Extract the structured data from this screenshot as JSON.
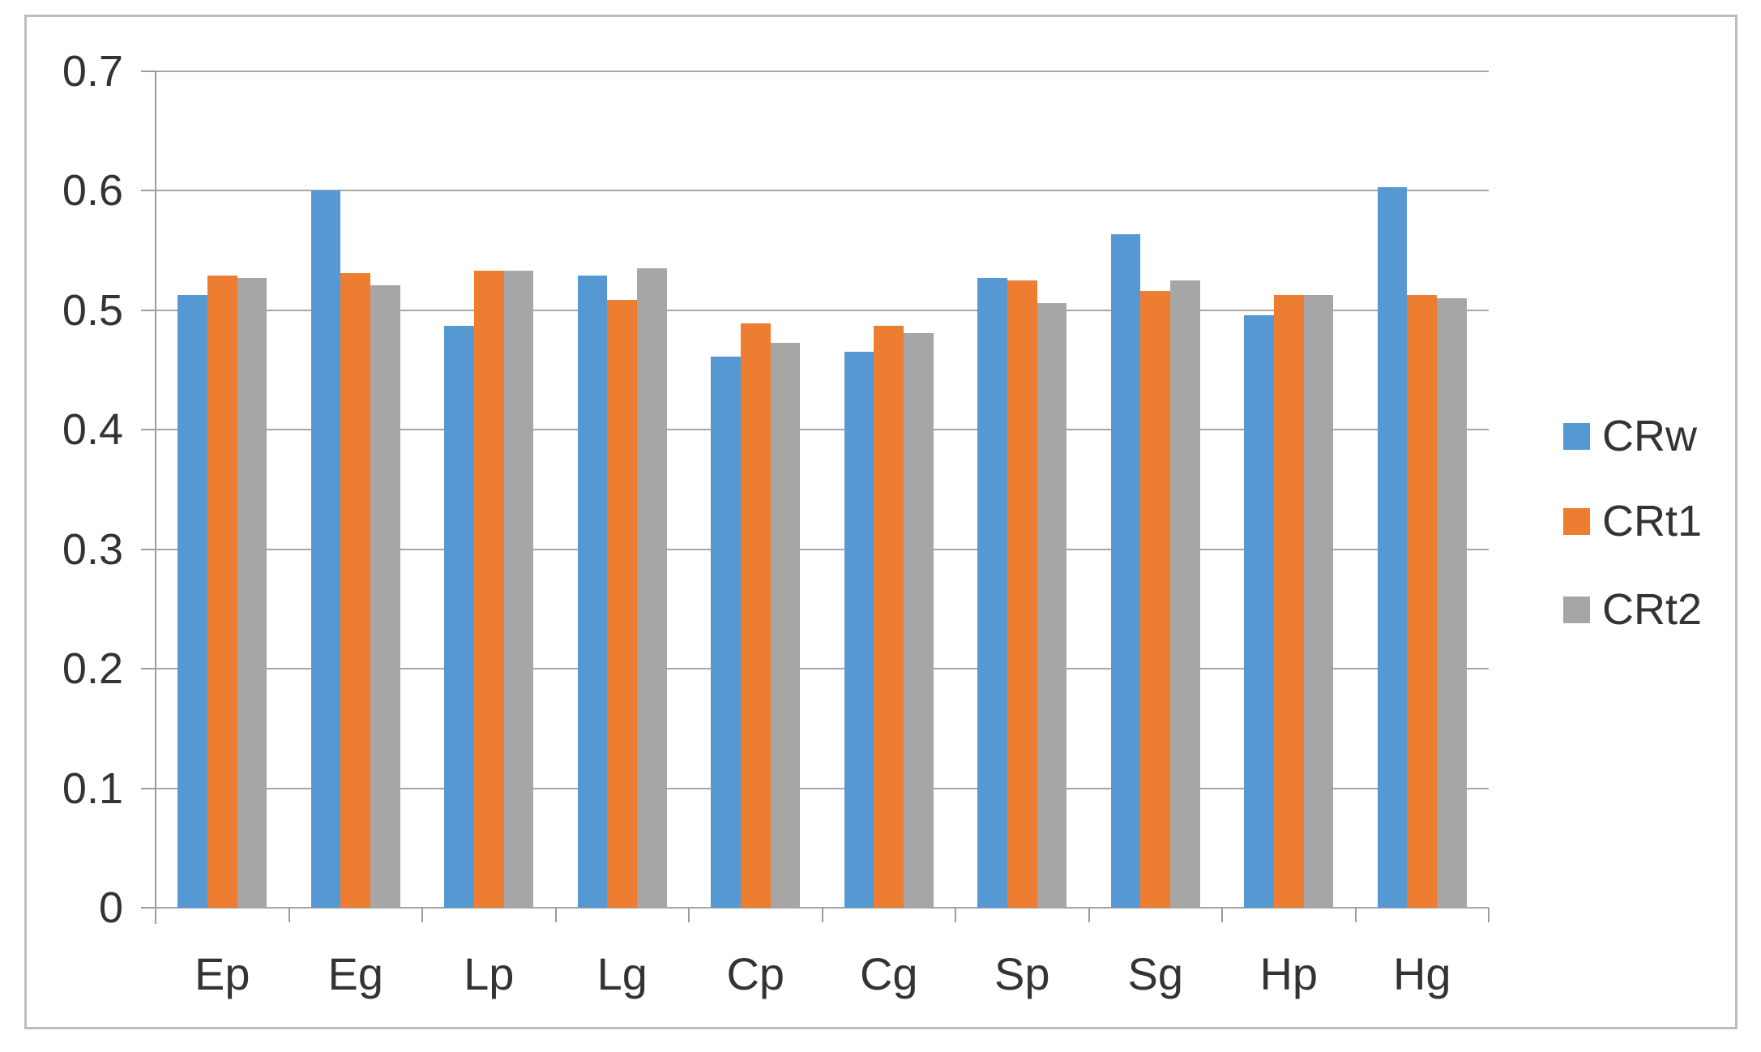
{
  "chart_data": {
    "type": "bar",
    "title": "",
    "categories": [
      "Ep",
      "Eg",
      "Lp",
      "Lg",
      "Cp",
      "Cg",
      "Sp",
      "Sg",
      "Hp",
      "Hg"
    ],
    "series": [
      {
        "name": "CRw",
        "color": "#5699D2",
        "values": [
          0.513,
          0.6,
          0.487,
          0.529,
          0.461,
          0.465,
          0.527,
          0.564,
          0.496,
          0.603
        ]
      },
      {
        "name": "CRt1",
        "color": "#ED7D31",
        "values": [
          0.529,
          0.531,
          0.533,
          0.509,
          0.489,
          0.487,
          0.525,
          0.516,
          0.513,
          0.513
        ]
      },
      {
        "name": "CRt2",
        "color": "#A6A6A6",
        "values": [
          0.527,
          0.521,
          0.533,
          0.535,
          0.473,
          0.481,
          0.506,
          0.525,
          0.513,
          0.51
        ]
      }
    ],
    "xlabel": "",
    "ylabel": "",
    "ylim": [
      0,
      0.7
    ],
    "ytick_step": 0.1,
    "ytick_labels": [
      "0",
      "0.1",
      "0.2",
      "0.3",
      "0.4",
      "0.5",
      "0.6",
      "0.7"
    ],
    "grid": true,
    "legend_position": "right",
    "gridline_color": "#A6A6A6",
    "axis_color": "#9C9C9C",
    "text_color": "#333333",
    "frame_border_color": "#BDBDBD"
  }
}
